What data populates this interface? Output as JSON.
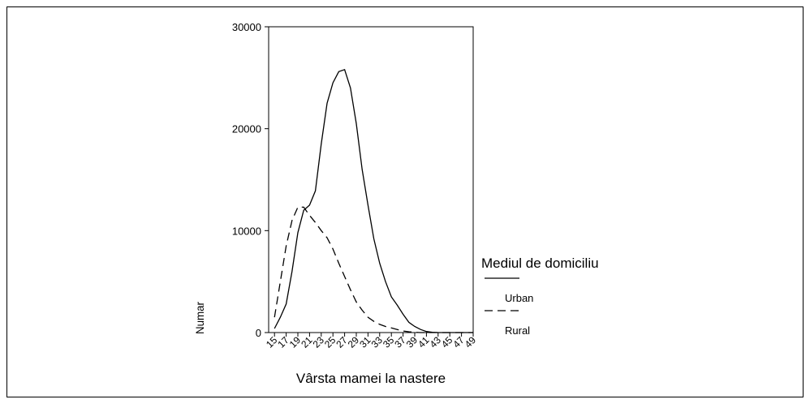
{
  "chart_data": {
    "type": "line",
    "x_label": "Vârsta mamei la nastere",
    "y_label": "Numar",
    "legend_title": "Mediul de domiciliu",
    "x": [
      15,
      16,
      17,
      18,
      19,
      20,
      21,
      22,
      23,
      24,
      25,
      26,
      27,
      28,
      29,
      30,
      31,
      32,
      33,
      34,
      35,
      36,
      37,
      38,
      39,
      40,
      41,
      42,
      43,
      44,
      45,
      46,
      47,
      48,
      49
    ],
    "series": [
      {
        "name": "Urban",
        "color": "#000000",
        "line_style": "solid",
        "values": [
          400,
          1500,
          2800,
          6000,
          9800,
          12000,
          12500,
          13900,
          18500,
          22500,
          24500,
          25600,
          25800,
          24000,
          20500,
          16000,
          12500,
          9200,
          6800,
          5000,
          3500,
          2700,
          1800,
          1000,
          600,
          300,
          100,
          30,
          0,
          0,
          0,
          0,
          0,
          0,
          0
        ]
      },
      {
        "name": "Rural",
        "color": "#000000",
        "line_style": "dashed",
        "values": [
          1500,
          5000,
          8500,
          11000,
          12300,
          12300,
          11500,
          10800,
          10000,
          9300,
          8200,
          6800,
          5500,
          4200,
          3000,
          2200,
          1500,
          1100,
          800,
          600,
          450,
          300,
          150,
          80,
          30,
          0,
          0,
          0,
          0,
          0,
          0,
          0,
          0,
          0,
          0
        ]
      }
    ],
    "xlim": [
      14,
      49
    ],
    "xticks": [
      15,
      17,
      19,
      21,
      23,
      25,
      27,
      29,
      31,
      33,
      35,
      37,
      39,
      41,
      43,
      45,
      47,
      49
    ],
    "ylim": [
      0,
      30000
    ],
    "yticks": [
      0,
      10000,
      20000,
      30000
    ],
    "grid": false
  }
}
